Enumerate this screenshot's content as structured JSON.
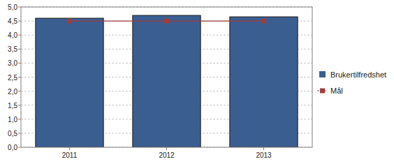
{
  "chart_data": {
    "type": "bar",
    "categories": [
      "2011",
      "2012",
      "2013"
    ],
    "series": [
      {
        "name": "Brukertilfredshet",
        "type": "bar",
        "color": "#3b5e91",
        "values": [
          4.6,
          4.7,
          4.65
        ]
      },
      {
        "name": "Mål",
        "type": "line",
        "color": "#a03c3c",
        "marker": "square",
        "values": [
          4.5,
          4.5,
          4.5
        ]
      }
    ],
    "ylim": [
      0,
      5
    ],
    "yticks": [
      {
        "value": 0,
        "label": "0,0"
      },
      {
        "value": 0.5,
        "label": "0,5"
      },
      {
        "value": 1,
        "label": "1,0"
      },
      {
        "value": 1.5,
        "label": "1,5"
      },
      {
        "value": 2,
        "label": "2,0"
      },
      {
        "value": 2.5,
        "label": "2,5"
      },
      {
        "value": 3,
        "label": "3,0"
      },
      {
        "value": 3.5,
        "label": "3,5"
      },
      {
        "value": 4,
        "label": "4,0"
      },
      {
        "value": 4.5,
        "label": "4,5"
      },
      {
        "value": 5,
        "label": "5,0"
      }
    ],
    "grid": true,
    "legend": "right"
  }
}
